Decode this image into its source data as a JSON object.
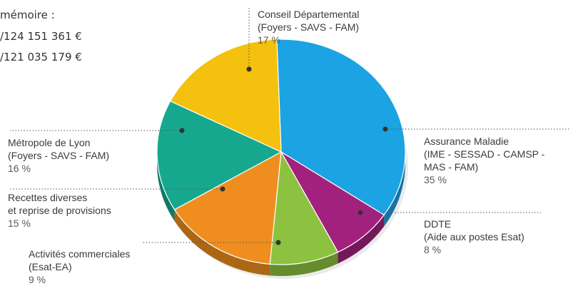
{
  "memo": {
    "title": "mémoire :",
    "line1": "/124 151 361 €",
    "line2": "/121 035 179 €"
  },
  "chart_data": {
    "type": "pie",
    "title": "",
    "slices": [
      {
        "line1": "Assurance Maladie",
        "line2": "(IME - SESSAD - CAMSP -",
        "line3": "MAS - FAM)",
        "pct_label": "35 %",
        "value": 35,
        "color": "#1ca3e3"
      },
      {
        "line1": "DDTE",
        "line2": "(Aide aux postes Esat)",
        "pct_label": "8 %",
        "value": 8,
        "color": "#a2217e"
      },
      {
        "line1": "Activités commerciales",
        "line2": "(Esat-EA)",
        "pct_label": "9 %",
        "value": 9,
        "color": "#8cc23f"
      },
      {
        "line1": "Recettes diverses",
        "line2": "et reprise de provisions",
        "pct_label": "15 %",
        "value": 15,
        "color": "#ef8e1f"
      },
      {
        "line1": "Métropole de Lyon",
        "line2": "(Foyers - SAVS - FAM)",
        "pct_label": "16 %",
        "value": 16,
        "color": "#16a88f"
      },
      {
        "line1": "Conseil Départemental",
        "line2": "(Foyers - SAVS - FAM)",
        "pct_label": "17 %",
        "value": 17,
        "color": "#f4c10f"
      }
    ]
  }
}
